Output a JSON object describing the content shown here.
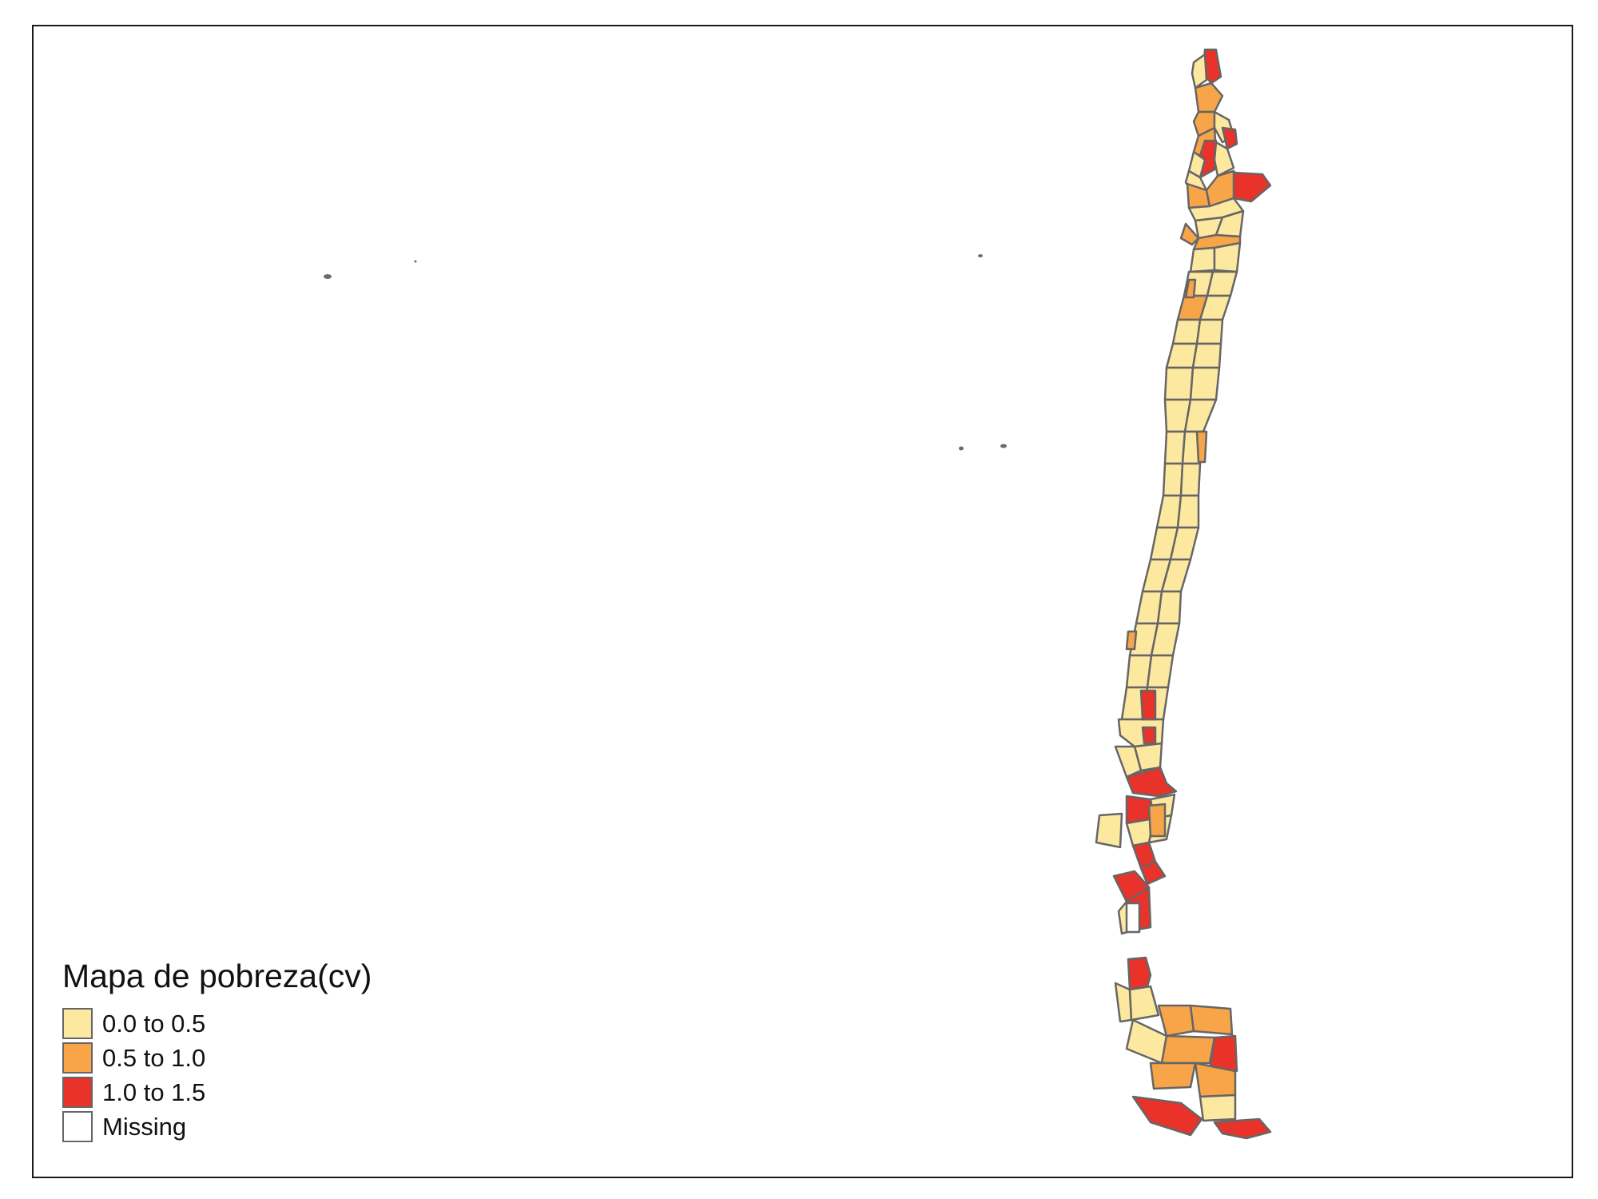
{
  "legend": {
    "title": "Mapa de pobreza(cv)",
    "items": [
      {
        "label": "0.0 to 0.5",
        "color": "#fde8a0"
      },
      {
        "label": "0.5 to 1.0",
        "color": "#f8a54a"
      },
      {
        "label": "1.0 to 1.5",
        "color": "#e8322a"
      },
      {
        "label": "Missing",
        "color": "#ffffff"
      }
    ]
  },
  "colors": {
    "border": "#666666",
    "archipelago": "#6b6b6b",
    "frame": "#1a1a1a"
  }
}
